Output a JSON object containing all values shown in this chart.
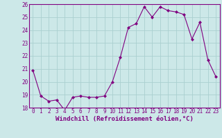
{
  "x": [
    0,
    1,
    2,
    3,
    4,
    5,
    6,
    7,
    8,
    9,
    10,
    11,
    12,
    13,
    14,
    15,
    16,
    17,
    18,
    19,
    20,
    21,
    22,
    23
  ],
  "y": [
    20.9,
    18.9,
    18.5,
    18.6,
    17.8,
    18.8,
    18.9,
    18.8,
    18.8,
    18.9,
    20.0,
    21.9,
    24.2,
    24.5,
    25.8,
    25.0,
    25.8,
    25.5,
    25.4,
    25.2,
    23.3,
    24.6,
    21.7,
    20.4
  ],
  "line_color": "#800080",
  "marker": "D",
  "marker_size": 2,
  "bg_color": "#cce8e8",
  "grid_color": "#aad0d0",
  "xlim": [
    -0.5,
    23.5
  ],
  "ylim": [
    18,
    26
  ],
  "yticks": [
    18,
    19,
    20,
    21,
    22,
    23,
    24,
    25,
    26
  ],
  "xticks": [
    0,
    1,
    2,
    3,
    4,
    5,
    6,
    7,
    8,
    9,
    10,
    11,
    12,
    13,
    14,
    15,
    16,
    17,
    18,
    19,
    20,
    21,
    22,
    23
  ],
  "xlabel": "Windchill (Refroidissement éolien,°C)",
  "xlabel_fontsize": 6.5,
  "tick_fontsize": 5.5,
  "tick_color": "#800080",
  "label_color": "#800080"
}
